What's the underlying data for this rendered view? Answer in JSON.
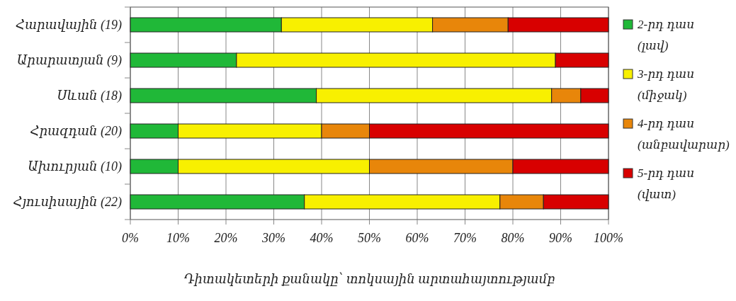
{
  "chart_data": {
    "type": "bar",
    "orientation": "horizontal",
    "stacked": true,
    "xlabel": "Դիտակետերի քանակը՝ տոկսային արտահայտությամբ",
    "categories": [
      "Հարավային (19)",
      "Արարատյան (9)",
      "Սևան (18)",
      "Հրազդան (20)",
      "Ախուրյան (10)",
      "Հյուսիսային (22)"
    ],
    "series": [
      {
        "name": "2-րդ դաս (լավ)",
        "color": "#20b838",
        "values": [
          31.6,
          22.2,
          38.9,
          10,
          10,
          36.4
        ]
      },
      {
        "name": "3-րդ դաս (միջակ)",
        "color": "#f8f000",
        "values": [
          31.6,
          66.7,
          49.2,
          30,
          40,
          40.9
        ]
      },
      {
        "name": "4-րդ դաս (անբավարար)",
        "color": "#e8860a",
        "values": [
          15.8,
          0,
          6.1,
          10,
          30,
          9.1
        ]
      },
      {
        "name": "5-րդ դաս (վատ)",
        "color": "#d80000",
        "values": [
          21.0,
          11.1,
          5.8,
          50,
          20,
          13.6
        ]
      }
    ],
    "xlim": [
      0,
      100
    ],
    "xticks": [
      {
        "value": 0,
        "label": "0%"
      },
      {
        "value": 10,
        "label": "10%"
      },
      {
        "value": 20,
        "label": "20%"
      },
      {
        "value": 30,
        "label": "30%"
      },
      {
        "value": 40,
        "label": "40%"
      },
      {
        "value": 50,
        "label": "50%"
      },
      {
        "value": 60,
        "label": "60%"
      },
      {
        "value": 70,
        "label": "70%"
      },
      {
        "value": 80,
        "label": "80%"
      },
      {
        "value": 90,
        "label": "90%"
      },
      {
        "value": 100,
        "label": "100%"
      }
    ],
    "grid": "x",
    "legend": "right"
  }
}
